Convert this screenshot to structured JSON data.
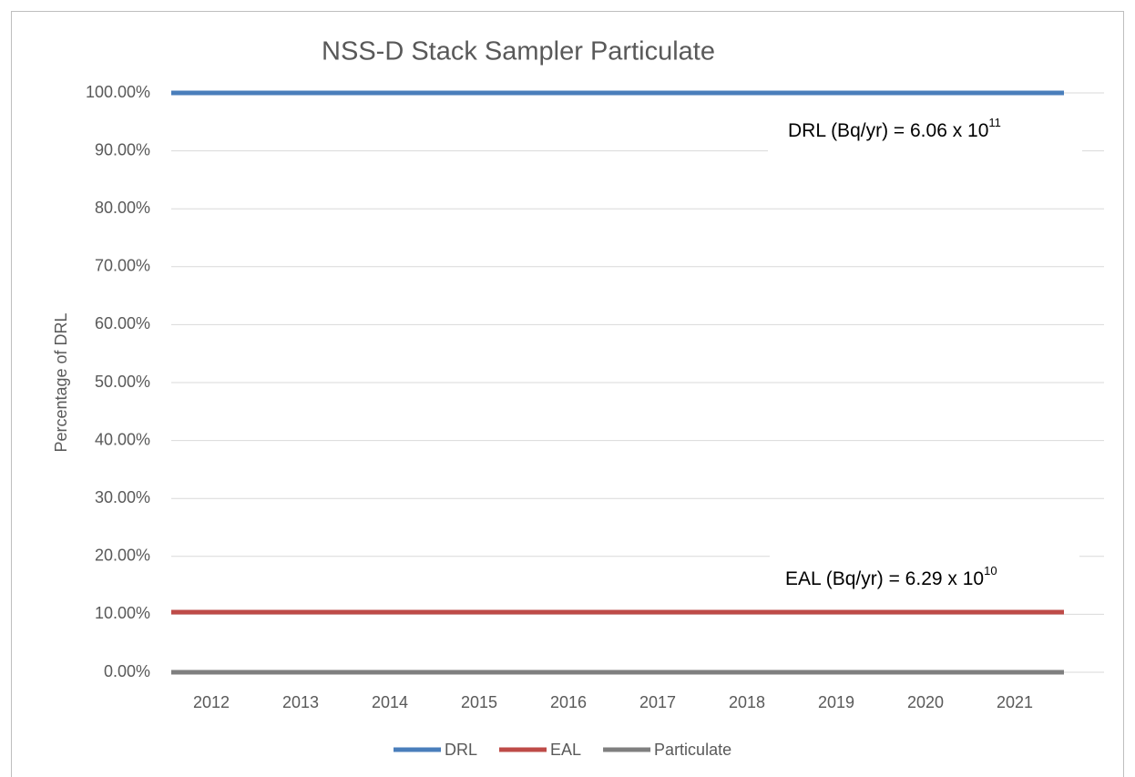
{
  "chart_data": {
    "type": "line",
    "title": "NSS-D Stack Sampler Particulate",
    "y_label": "Percentage of DRL",
    "categories": [
      "2012",
      "2013",
      "2014",
      "2015",
      "2016",
      "2017",
      "2018",
      "2019",
      "2020",
      "2021"
    ],
    "series": [
      {
        "name": "DRL",
        "color": "#4a7ebb",
        "values": [
          100,
          100,
          100,
          100,
          100,
          100,
          100,
          100,
          100,
          100
        ]
      },
      {
        "name": "EAL",
        "color": "#be4b48",
        "values": [
          10.38,
          10.38,
          10.38,
          10.38,
          10.38,
          10.38,
          10.38,
          10.38,
          10.38,
          10.38
        ]
      },
      {
        "name": "Particulate",
        "color": "#7f7f7f",
        "values": [
          0,
          0,
          0,
          0,
          0,
          0,
          0,
          0,
          0,
          0
        ]
      }
    ],
    "ylim": [
      0,
      100
    ],
    "yticks": [
      {
        "value": 0,
        "label": "0.00%"
      },
      {
        "value": 10,
        "label": "10.00%"
      },
      {
        "value": 20,
        "label": "20.00%"
      },
      {
        "value": 30,
        "label": "30.00%"
      },
      {
        "value": 40,
        "label": "40.00%"
      },
      {
        "value": 50,
        "label": "50.00%"
      },
      {
        "value": 60,
        "label": "60.00%"
      },
      {
        "value": 70,
        "label": "70.00%"
      },
      {
        "value": 80,
        "label": "80.00%"
      },
      {
        "value": 90,
        "label": "90.00%"
      },
      {
        "value": 100,
        "label": "100.00%"
      }
    ],
    "grid": true,
    "legend": "bottom",
    "annotations": [
      {
        "text": "DRL (Bq/yr) = 6.06 x 10",
        "superscript": "11"
      },
      {
        "text": "EAL (Bq/yr) = 6.29 x 10",
        "superscript": "10"
      }
    ]
  }
}
